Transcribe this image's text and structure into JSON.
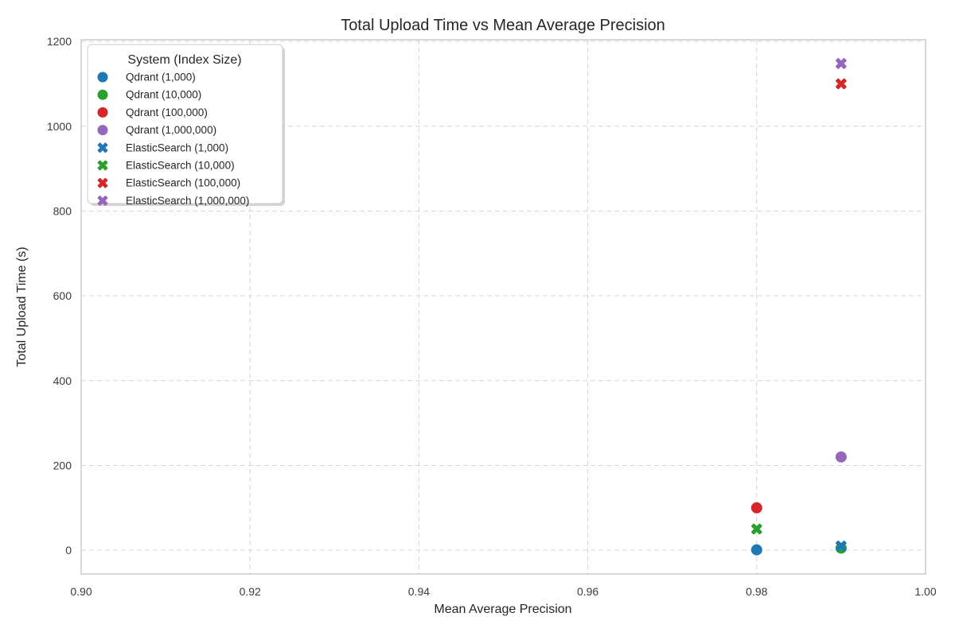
{
  "chart_data": {
    "type": "scatter",
    "title": "Total Upload Time vs Mean Average Precision",
    "xlabel": "Mean Average Precision",
    "ylabel": "Total Upload Time (s)",
    "xlim": [
      0.9,
      1.0
    ],
    "ylim": [
      -56,
      1204
    ],
    "xticks": [
      "0.90",
      "0.92",
      "0.94",
      "0.96",
      "0.98",
      "1.00"
    ],
    "yticks": [
      0,
      200,
      400,
      600,
      800,
      1000,
      1200
    ],
    "grid": true,
    "grid_style": "dashed",
    "legend": {
      "title": "System (Index Size)",
      "position": "upper left"
    },
    "colors": {
      "blue": "#1f77b4",
      "green": "#2ca02c",
      "red": "#d62728",
      "purple": "#9467bd",
      "grid": "#d6d6d6",
      "border": "#cccccc",
      "shadow": "#b0b0b0",
      "text": "#262626"
    },
    "series": [
      {
        "name": "Qdrant (1,000)",
        "marker": "circle",
        "color": "#1f77b4",
        "points": [
          [
            0.98,
            1
          ]
        ]
      },
      {
        "name": "Qdrant (10,000)",
        "marker": "circle",
        "color": "#2ca02c",
        "points": [
          [
            0.99,
            5
          ]
        ]
      },
      {
        "name": "Qdrant (100,000)",
        "marker": "circle",
        "color": "#d62728",
        "points": [
          [
            0.98,
            100
          ]
        ]
      },
      {
        "name": "Qdrant (1,000,000)",
        "marker": "circle",
        "color": "#9467bd",
        "points": [
          [
            0.99,
            220
          ]
        ]
      },
      {
        "name": "ElasticSearch (1,000)",
        "marker": "x",
        "color": "#1f77b4",
        "points": [
          [
            0.99,
            10
          ]
        ]
      },
      {
        "name": "ElasticSearch (10,000)",
        "marker": "x",
        "color": "#2ca02c",
        "points": [
          [
            0.98,
            50
          ]
        ]
      },
      {
        "name": "ElasticSearch (100,000)",
        "marker": "x",
        "color": "#d62728",
        "points": [
          [
            0.99,
            1100
          ]
        ]
      },
      {
        "name": "ElasticSearch (1,000,000)",
        "marker": "x",
        "color": "#9467bd",
        "points": [
          [
            0.99,
            1148
          ]
        ]
      }
    ]
  }
}
